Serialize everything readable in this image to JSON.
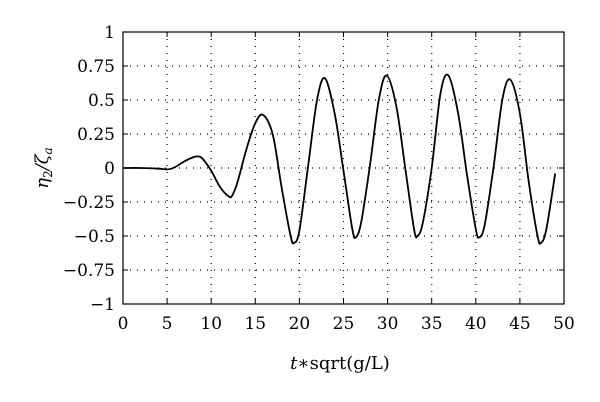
{
  "chart_data": {
    "type": "line",
    "title": "",
    "xlabel_var": "t",
    "xlabel_rest": "∗sqrt(g/L)",
    "ylabel_main": "η",
    "ylabel_sub1": "2",
    "ylabel_slash": "/ζ",
    "ylabel_sub2": "a",
    "xlim": [
      0,
      50
    ],
    "ylim": [
      -1,
      1
    ],
    "xticks": [
      0,
      5,
      10,
      15,
      20,
      25,
      30,
      35,
      40,
      45,
      50
    ],
    "xtick_labels": [
      "0",
      "5",
      "10",
      "15",
      "20",
      "25",
      "30",
      "35",
      "40",
      "45",
      "50"
    ],
    "yticks": [
      1,
      0.75,
      0.5,
      0.25,
      0,
      -0.25,
      -0.5,
      -0.75,
      -1
    ],
    "ytick_labels": [
      "1",
      "0.75",
      "0.5",
      "0.25",
      "0",
      "−0.25",
      "−0.5",
      "−0.75",
      "−1"
    ],
    "grid": true,
    "line_color": "#000000",
    "series": [
      {
        "x": [
          0,
          2,
          4,
          5,
          5.5,
          6,
          7,
          8,
          8.5,
          9,
          10,
          11,
          12,
          12.4,
          13,
          14,
          15,
          15.9,
          17,
          18,
          19,
          19.4,
          20,
          21,
          22,
          22.9,
          24,
          25,
          26,
          26.4,
          27,
          28,
          29,
          29.9,
          31,
          32,
          33,
          33.4,
          34,
          35,
          36,
          36.9,
          38,
          39,
          40,
          40.4,
          41,
          42,
          43,
          43.9,
          45,
          46,
          47,
          47.4,
          48,
          49
        ],
        "y": [
          0,
          0,
          -0.005,
          -0.01,
          -0.005,
          0.01,
          0.05,
          0.08,
          0.085,
          0.07,
          -0.02,
          -0.14,
          -0.21,
          -0.2,
          -0.1,
          0.14,
          0.33,
          0.39,
          0.24,
          -0.15,
          -0.5,
          -0.55,
          -0.46,
          0.02,
          0.5,
          0.66,
          0.4,
          -0.02,
          -0.45,
          -0.51,
          -0.4,
          0.02,
          0.5,
          0.68,
          0.45,
          0.0,
          -0.45,
          -0.5,
          -0.4,
          0.0,
          0.55,
          0.68,
          0.4,
          -0.05,
          -0.45,
          -0.51,
          -0.42,
          0.0,
          0.5,
          0.65,
          0.4,
          -0.1,
          -0.5,
          -0.55,
          -0.45,
          -0.04
        ]
      }
    ]
  }
}
